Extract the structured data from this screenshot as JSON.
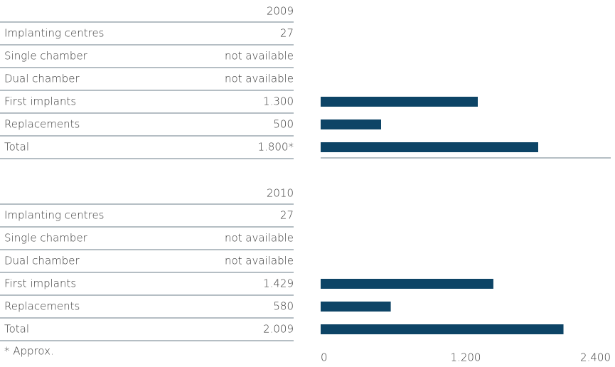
{
  "chart_data": [
    {
      "type": "bar",
      "title": "2009",
      "categories": [
        "Implanting centres",
        "Single chamber",
        "Dual chamber",
        "First implants",
        "Replacements",
        "Total"
      ],
      "values": [
        null,
        null,
        null,
        1300,
        500,
        1800
      ],
      "value_labels": [
        "27",
        "not available",
        "not available",
        "1.300",
        "500",
        "1.800*"
      ],
      "color": "#0d4466",
      "xlim": [
        0,
        2400
      ]
    },
    {
      "type": "bar",
      "title": "2010",
      "categories": [
        "Implanting centres",
        "Single chamber",
        "Dual chamber",
        "First implants",
        "Replacements",
        "Total"
      ],
      "values": [
        null,
        null,
        null,
        1429,
        580,
        2009
      ],
      "value_labels": [
        "27",
        "not available",
        "not available",
        "1.429",
        "580",
        "2.009"
      ],
      "color": "#0d4466",
      "xlim": [
        0,
        2400
      ],
      "xticks": [
        0,
        {
          "value": 1200,
          "label": "1.200"
        },
        {
          "value": 2400,
          "label": "2.400"
        }
      ]
    }
  ],
  "footnote": "* Approx."
}
